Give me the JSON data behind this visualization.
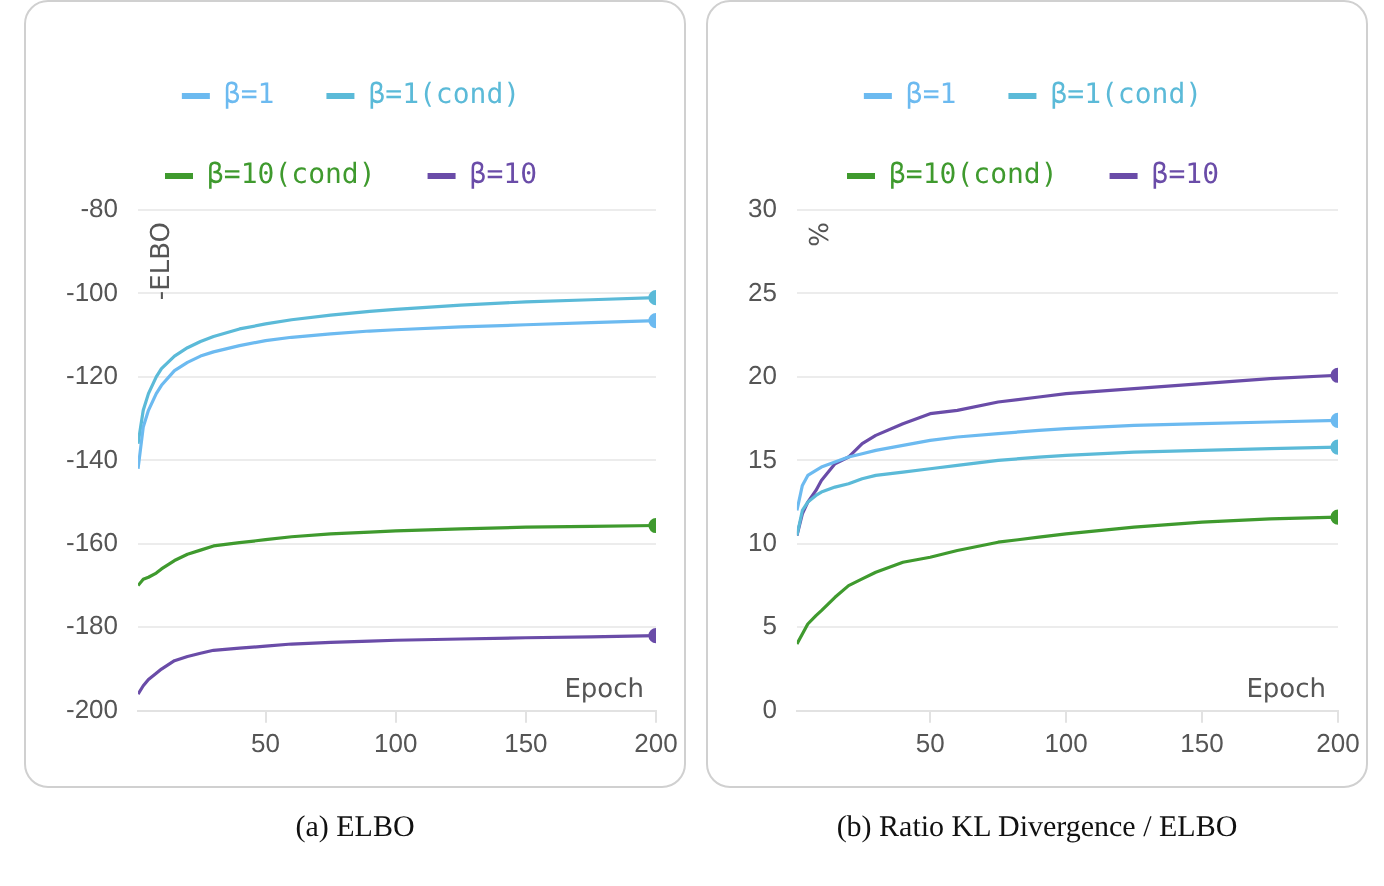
{
  "chart_data": [
    {
      "type": "line",
      "title": "(a) ELBO",
      "xlabel": "Epoch",
      "ylabel": "-ELBO",
      "x": [
        1,
        3,
        5,
        8,
        10,
        15,
        20,
        25,
        30,
        40,
        50,
        60,
        75,
        90,
        100,
        125,
        150,
        175,
        200
      ],
      "series": [
        {
          "name": "β=1",
          "color": "#6cbaf0",
          "values": [
            -142,
            -132,
            -128,
            -124,
            -122,
            -118.5,
            -116.5,
            -115,
            -114,
            -112.5,
            -111.3,
            -110.5,
            -109.7,
            -109,
            -108.7,
            -108,
            -107.5,
            -107,
            -106.5
          ]
        },
        {
          "name": "β=1(cond)",
          "color": "#5bbad8",
          "values": [
            -136,
            -128,
            -124,
            -120,
            -118,
            -115,
            -113,
            -111.5,
            -110.3,
            -108.5,
            -107.3,
            -106.3,
            -105.2,
            -104.3,
            -103.8,
            -102.8,
            -102,
            -101.5,
            -101
          ]
        },
        {
          "name": "β=10(cond)",
          "color": "#3f9a2e",
          "values": [
            -170,
            -168.5,
            -168,
            -167,
            -166,
            -164,
            -162.5,
            -161.5,
            -160.5,
            -159.7,
            -159,
            -158.3,
            -157.6,
            -157.2,
            -156.9,
            -156.4,
            -156,
            -155.8,
            -155.6
          ]
        },
        {
          "name": "β=10",
          "color": "#6a4ca8",
          "values": [
            -196,
            -194,
            -192.5,
            -191,
            -190,
            -188,
            -187,
            -186.2,
            -185.5,
            -185,
            -184.5,
            -184,
            -183.6,
            -183.3,
            -183.1,
            -182.8,
            -182.5,
            -182.3,
            -182
          ]
        }
      ],
      "xlim": [
        1,
        200
      ],
      "xticks": [
        50,
        100,
        150,
        200
      ],
      "ylim": [
        -200,
        -80
      ],
      "yticks": [
        -200,
        -180,
        -160,
        -140,
        -120,
        -100,
        -80
      ],
      "grid": "y",
      "legend": "top"
    },
    {
      "type": "line",
      "title": "(b) Ratio KL Divergence / ELBO",
      "xlabel": "Epoch",
      "ylabel": "%",
      "x": [
        1,
        3,
        5,
        8,
        10,
        15,
        20,
        25,
        30,
        40,
        50,
        60,
        75,
        90,
        100,
        125,
        150,
        175,
        200
      ],
      "series": [
        {
          "name": "β=1",
          "color": "#6cbaf0",
          "values": [
            12,
            13.5,
            14.1,
            14.4,
            14.6,
            14.9,
            15.2,
            15.4,
            15.6,
            15.9,
            16.2,
            16.4,
            16.6,
            16.8,
            16.9,
            17.1,
            17.2,
            17.3,
            17.4
          ]
        },
        {
          "name": "β=1(cond)",
          "color": "#5bbad8",
          "values": [
            10.5,
            12,
            12.5,
            12.9,
            13.1,
            13.4,
            13.6,
            13.9,
            14.1,
            14.3,
            14.5,
            14.7,
            15,
            15.2,
            15.3,
            15.5,
            15.6,
            15.7,
            15.8
          ]
        },
        {
          "name": "β=10(cond)",
          "color": "#3f9a2e",
          "values": [
            4,
            4.6,
            5.2,
            5.7,
            6,
            6.8,
            7.5,
            7.9,
            8.3,
            8.9,
            9.2,
            9.6,
            10.1,
            10.4,
            10.6,
            11,
            11.3,
            11.5,
            11.6
          ]
        },
        {
          "name": "β=10",
          "color": "#6a4ca8",
          "values": [
            10.5,
            11.8,
            12.5,
            13.2,
            13.8,
            14.8,
            15.2,
            16,
            16.5,
            17.2,
            17.8,
            18,
            18.5,
            18.8,
            19,
            19.3,
            19.6,
            19.9,
            20.1
          ]
        }
      ],
      "xlim": [
        1,
        200
      ],
      "xticks": [
        50,
        100,
        150,
        200
      ],
      "ylim": [
        0,
        30
      ],
      "yticks": [
        0,
        5,
        10,
        15,
        20,
        25,
        30
      ],
      "grid": "y",
      "legend": "top"
    }
  ]
}
